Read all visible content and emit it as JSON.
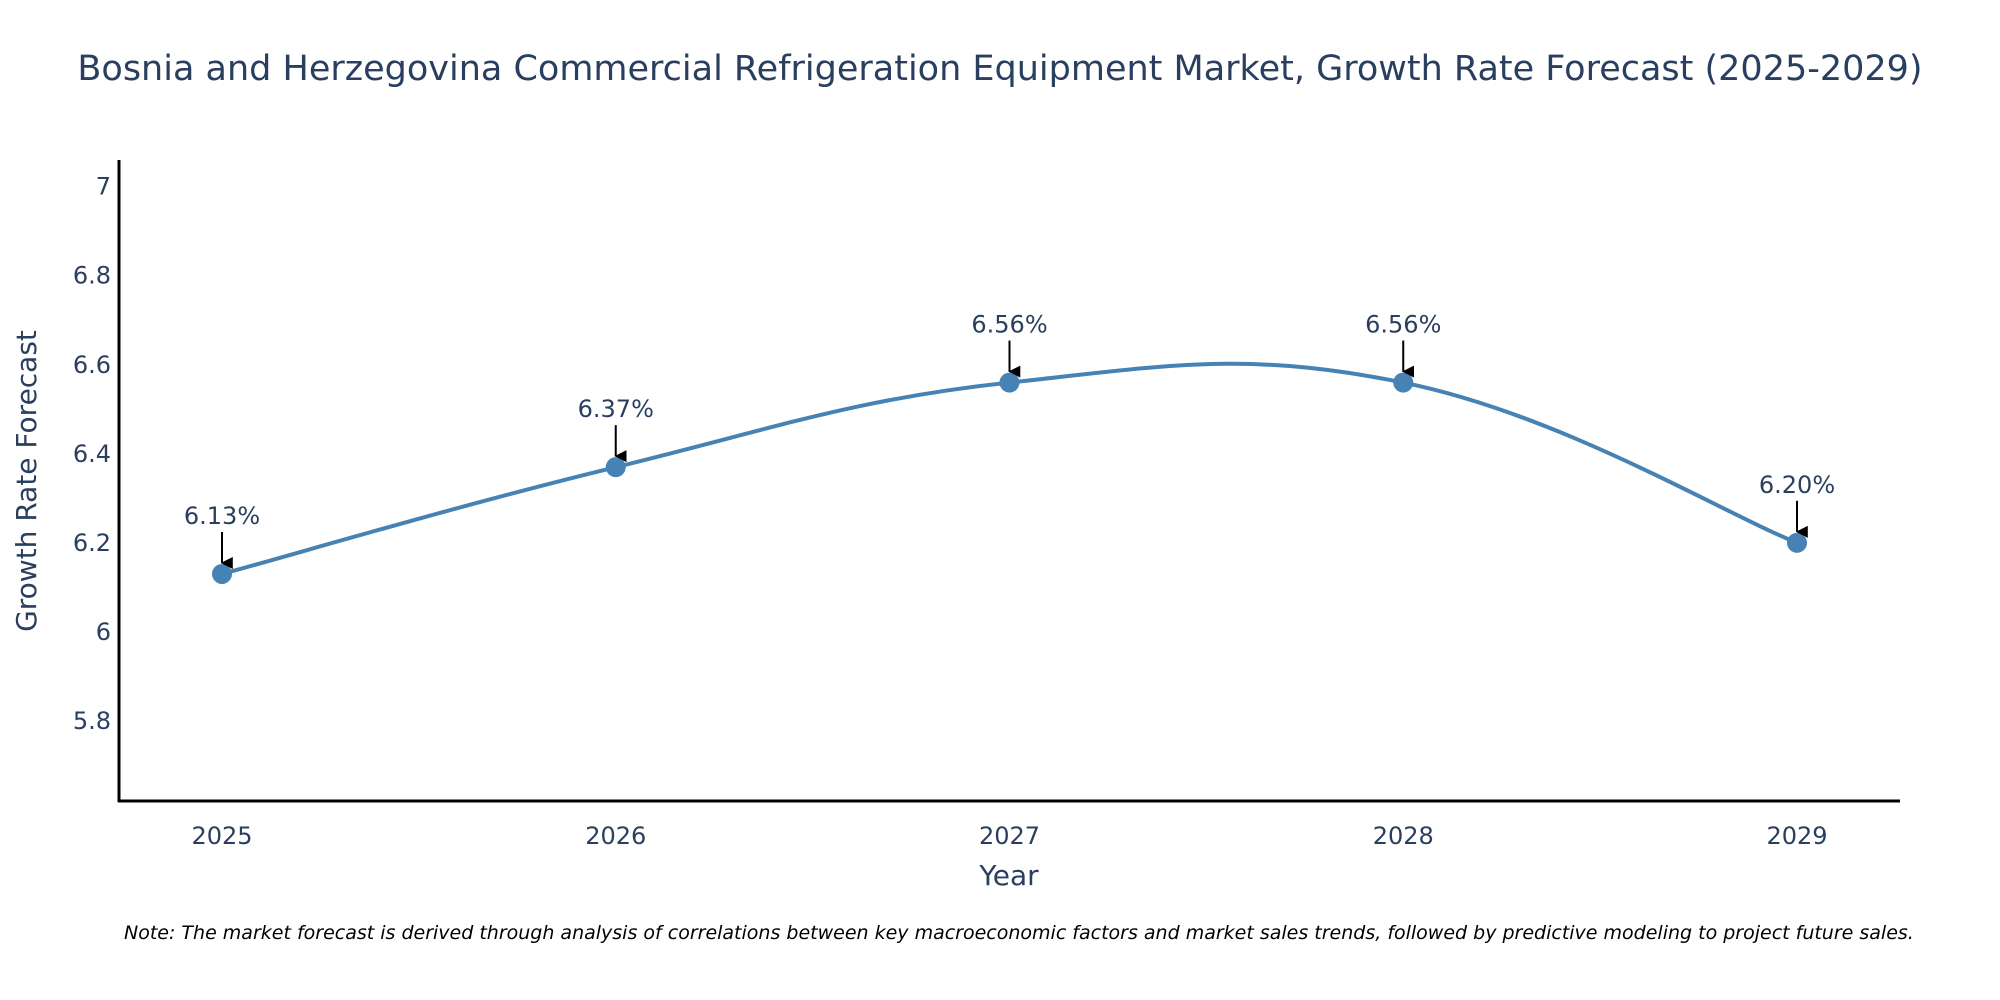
{
  "chart_data": {
    "type": "line",
    "title": "Bosnia and Herzegovina Commercial Refrigeration Equipment Market, Growth Rate Forecast (2025-2029)",
    "xlabel": "Year",
    "ylabel": "Growth Rate Forecast",
    "x": [
      "2025",
      "2026",
      "2027",
      "2028",
      "2029"
    ],
    "series": [
      {
        "name": "Growth Rate Forecast",
        "values": [
          6.13,
          6.37,
          6.56,
          6.56,
          6.2
        ],
        "labels": [
          "6.13%",
          "6.37%",
          "6.56%",
          "6.56%",
          "6.20%"
        ]
      }
    ],
    "ylim": [
      5.62,
      7.06
    ],
    "yticks": [
      5.8,
      6,
      6.2,
      6.4,
      6.6,
      6.8,
      7
    ],
    "ytick_labels": [
      "5.8",
      "6",
      "6.2",
      "6.4",
      "6.6",
      "6.8",
      "7"
    ],
    "grid": false,
    "line_shape": "spline",
    "note": "Note: The market forecast is derived through analysis of correlations between key macroeconomic factors and market sales trends, followed by predictive modeling to project future sales."
  },
  "colors": {
    "line": "#4682b4",
    "marker": "#4682b4",
    "arrow": "#000000",
    "axis": "#000000",
    "text": "#2a3f5f"
  }
}
